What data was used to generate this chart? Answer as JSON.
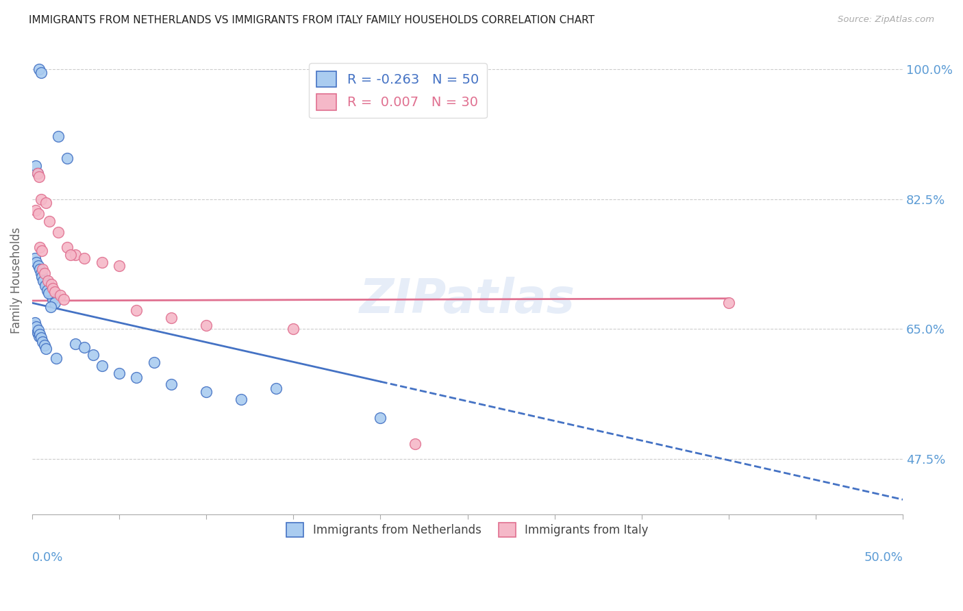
{
  "title": "IMMIGRANTS FROM NETHERLANDS VS IMMIGRANTS FROM ITALY FAMILY HOUSEHOLDS CORRELATION CHART",
  "source": "Source: ZipAtlas.com",
  "ylabel": "Family Households",
  "right_yticks": [
    47.5,
    65.0,
    82.5,
    100.0
  ],
  "right_ytick_labels": [
    "47.5%",
    "65.0%",
    "82.5%",
    "100.0%"
  ],
  "legend_blue_r": "-0.263",
  "legend_blue_n": "50",
  "legend_pink_r": "0.007",
  "legend_pink_n": "30",
  "blue_color": "#aaccf0",
  "pink_color": "#f5b8c8",
  "blue_line_color": "#4472c4",
  "pink_line_color": "#e07090",
  "watermark": "ZIPatlas",
  "title_color": "#222222",
  "axis_label_color": "#5b9bd5",
  "blue_scatter_x": [
    0.4,
    0.5,
    1.5,
    2.0,
    0.2,
    0.3,
    0.15,
    0.25,
    0.35,
    0.45,
    0.5,
    0.6,
    0.7,
    0.8,
    0.9,
    1.0,
    1.1,
    1.2,
    1.3,
    0.55,
    0.65,
    0.75,
    0.85,
    0.95,
    1.05,
    0.1,
    0.2,
    0.3,
    0.4,
    0.15,
    0.25,
    0.35,
    0.45,
    0.5,
    0.6,
    0.7,
    0.8,
    1.4,
    7.0,
    14.0,
    2.5,
    3.0,
    3.5,
    4.0,
    5.0,
    6.0,
    8.0,
    10.0,
    12.0,
    20.0
  ],
  "blue_scatter_y": [
    100.0,
    99.5,
    91.0,
    88.0,
    87.0,
    86.0,
    74.5,
    74.0,
    73.5,
    73.0,
    72.5,
    72.0,
    71.5,
    71.0,
    70.5,
    70.0,
    69.5,
    69.0,
    68.5,
    72.0,
    71.5,
    70.8,
    70.2,
    69.8,
    68.0,
    65.5,
    65.0,
    64.5,
    64.0,
    65.8,
    65.3,
    64.8,
    64.3,
    63.8,
    63.3,
    62.8,
    62.3,
    61.0,
    60.5,
    57.0,
    63.0,
    62.5,
    61.5,
    60.0,
    59.0,
    58.5,
    57.5,
    56.5,
    55.5,
    53.0
  ],
  "pink_scatter_x": [
    0.5,
    0.8,
    1.0,
    1.5,
    2.0,
    2.5,
    3.0,
    4.0,
    5.0,
    0.3,
    0.4,
    0.6,
    0.7,
    0.9,
    1.1,
    1.2,
    1.3,
    1.6,
    1.8,
    0.2,
    0.35,
    0.45,
    0.55,
    2.2,
    6.0,
    8.0,
    10.0,
    15.0,
    22.0,
    40.0
  ],
  "pink_scatter_y": [
    82.5,
    82.0,
    79.5,
    78.0,
    76.0,
    75.0,
    74.5,
    74.0,
    73.5,
    86.0,
    85.5,
    73.0,
    72.5,
    71.5,
    71.0,
    70.5,
    70.0,
    69.5,
    69.0,
    81.0,
    80.5,
    76.0,
    75.5,
    75.0,
    67.5,
    66.5,
    65.5,
    65.0,
    49.5,
    68.5
  ],
  "xmin": 0.0,
  "xmax": 50.0,
  "ymin": 40.0,
  "ymax": 103.0,
  "blue_line_x0": 0.0,
  "blue_line_y0": 68.5,
  "blue_line_x1": 50.0,
  "blue_line_y1": 42.0,
  "blue_solid_end": 20.0,
  "pink_line_x0": 0.0,
  "pink_line_y0": 68.8,
  "pink_line_x1": 40.0,
  "pink_line_y1": 69.1
}
